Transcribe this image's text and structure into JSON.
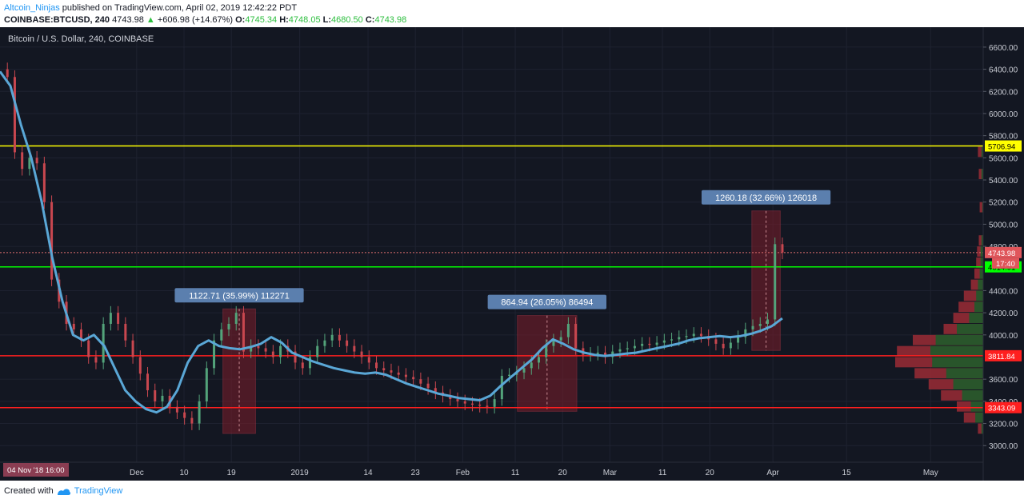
{
  "header": {
    "author": "Altcoin_Ninjas",
    "published_text": "published on TradingView.com, April 02, 2019 12:42:22 PDT",
    "symbol": "COINBASE:BTCUSD, 240",
    "last": "4743.98",
    "change": "+606.98 (+14.67%)",
    "o_label": "O:",
    "o_value": "4745.34",
    "h_label": "H:",
    "h_value": "4748.05",
    "l_label": "L:",
    "l_value": "4680.50",
    "c_label": "C:",
    "c_value": "4743.98"
  },
  "footer": {
    "created_with": "Created with",
    "brand": "TradingView"
  },
  "colors": {
    "background": "#131722",
    "moving_average": "#5aa7d6",
    "support": "#ff1f1f",
    "resistance": "#ffff00",
    "pivot": "#00ff00",
    "box": "#7d1d2a"
  },
  "chart_data": {
    "type": "line",
    "title": "Bitcoin / U.S. Dollar, 240, COINBASE",
    "ylim": [
      2850,
      6780
    ],
    "grid": true,
    "y_ticks": [
      {
        "value": 3000,
        "label": "3000.00"
      },
      {
        "value": 3200,
        "label": "3200.00"
      },
      {
        "value": 3400,
        "label": "3400.00"
      },
      {
        "value": 3600,
        "label": "3600.00"
      },
      {
        "value": 4000,
        "label": "4000.00"
      },
      {
        "value": 4200,
        "label": "4200.00"
      },
      {
        "value": 4400,
        "label": "4400.00"
      },
      {
        "value": 4800,
        "label": "4800.00"
      },
      {
        "value": 5000,
        "label": "5000.00"
      },
      {
        "value": 5200,
        "label": "5200.00"
      },
      {
        "value": 5400,
        "label": "5400.00"
      },
      {
        "value": 5600,
        "label": "5600.00"
      },
      {
        "value": 5800,
        "label": "5800.00"
      },
      {
        "value": 6000,
        "label": "6000.00"
      },
      {
        "value": 6200,
        "label": "6200.00"
      },
      {
        "value": 6400,
        "label": "6400.00"
      },
      {
        "value": 6600,
        "label": "6600.00"
      }
    ],
    "x_ticks": [
      {
        "day": 27,
        "label": "Dec"
      },
      {
        "day": 36,
        "label": "10"
      },
      {
        "day": 45,
        "label": "19"
      },
      {
        "day": 58,
        "label": "2019"
      },
      {
        "day": 71,
        "label": "14"
      },
      {
        "day": 80,
        "label": "23"
      },
      {
        "day": 89,
        "label": "Feb"
      },
      {
        "day": 99,
        "label": "11"
      },
      {
        "day": 108,
        "label": "20"
      },
      {
        "day": 117,
        "label": "Mar"
      },
      {
        "day": 127,
        "label": "11"
      },
      {
        "day": 136,
        "label": "20"
      },
      {
        "day": 148,
        "label": "Apr"
      },
      {
        "day": 162,
        "label": "15"
      },
      {
        "day": 178,
        "label": "May"
      }
    ],
    "x_range_days": [
      1,
      188
    ],
    "start_label": "04 Nov '18   16:00",
    "price_series": [
      [
        1,
        6400
      ],
      [
        2,
        6330
      ],
      [
        3,
        5650
      ],
      [
        4,
        5500
      ],
      [
        5,
        5600
      ],
      [
        6,
        5550
      ],
      [
        7,
        5200
      ],
      [
        8,
        4500
      ],
      [
        9,
        4300
      ],
      [
        10,
        4100
      ],
      [
        11,
        4050
      ],
      [
        12,
        3950
      ],
      [
        13,
        3800
      ],
      [
        14,
        3750
      ],
      [
        15,
        4100
      ],
      [
        16,
        4200
      ],
      [
        17,
        4100
      ],
      [
        18,
        3950
      ],
      [
        19,
        3800
      ],
      [
        20,
        3650
      ],
      [
        21,
        3500
      ],
      [
        22,
        3400
      ],
      [
        23,
        3450
      ],
      [
        24,
        3350
      ],
      [
        25,
        3300
      ],
      [
        26,
        3250
      ],
      [
        27,
        3200
      ],
      [
        28,
        3400
      ],
      [
        29,
        3700
      ],
      [
        30,
        3950
      ],
      [
        31,
        4050
      ],
      [
        32,
        4100
      ],
      [
        33,
        4200
      ],
      [
        34,
        3850
      ],
      [
        35,
        3900
      ],
      [
        36,
        3880
      ],
      [
        37,
        3850
      ],
      [
        38,
        3800
      ],
      [
        39,
        3900
      ],
      [
        40,
        3850
      ],
      [
        41,
        3750
      ],
      [
        42,
        3700
      ],
      [
        43,
        3800
      ],
      [
        44,
        3900
      ],
      [
        45,
        3950
      ],
      [
        46,
        4000
      ],
      [
        47,
        3950
      ],
      [
        48,
        3900
      ],
      [
        49,
        3850
      ],
      [
        50,
        3800
      ],
      [
        51,
        3750
      ],
      [
        52,
        3700
      ],
      [
        53,
        3680
      ],
      [
        54,
        3660
      ],
      [
        55,
        3640
      ],
      [
        56,
        3620
      ],
      [
        57,
        3600
      ],
      [
        58,
        3560
      ],
      [
        59,
        3520
      ],
      [
        60,
        3480
      ],
      [
        61,
        3450
      ],
      [
        62,
        3420
      ],
      [
        63,
        3400
      ],
      [
        64,
        3380
      ],
      [
        65,
        3370
      ],
      [
        66,
        3360
      ],
      [
        67,
        3350
      ],
      [
        68,
        3420
      ],
      [
        69,
        3630
      ],
      [
        70,
        3640
      ],
      [
        71,
        3660
      ],
      [
        72,
        3700
      ],
      [
        73,
        3750
      ],
      [
        74,
        3800
      ],
      [
        75,
        3900
      ],
      [
        76,
        3950
      ],
      [
        77,
        3980
      ],
      [
        78,
        4100
      ],
      [
        79,
        3880
      ],
      [
        80,
        3820
      ],
      [
        81,
        3830
      ],
      [
        82,
        3840
      ],
      [
        83,
        3800
      ],
      [
        84,
        3850
      ],
      [
        85,
        3870
      ],
      [
        86,
        3880
      ],
      [
        87,
        3900
      ],
      [
        88,
        3920
      ],
      [
        89,
        3910
      ],
      [
        90,
        3930
      ],
      [
        91,
        3950
      ],
      [
        92,
        3960
      ],
      [
        93,
        3980
      ],
      [
        94,
        3990
      ],
      [
        95,
        4010
      ],
      [
        96,
        3990
      ],
      [
        97,
        3960
      ],
      [
        98,
        3920
      ],
      [
        99,
        3880
      ],
      [
        100,
        3930
      ],
      [
        101,
        3980
      ],
      [
        102,
        4050
      ],
      [
        103,
        4080
      ],
      [
        104,
        4100
      ],
      [
        105,
        4140
      ],
      [
        106,
        4820
      ],
      [
        107,
        4744
      ]
    ],
    "ma_series": [
      [
        1,
        6380
      ],
      [
        2,
        6250
      ],
      [
        3,
        5900
      ],
      [
        4,
        5600
      ],
      [
        5,
        5200
      ],
      [
        6,
        4700
      ],
      [
        7,
        4300
      ],
      [
        8,
        4000
      ],
      [
        9,
        3950
      ],
      [
        10,
        4000
      ],
      [
        11,
        3900
      ],
      [
        12,
        3700
      ],
      [
        13,
        3500
      ],
      [
        14,
        3400
      ],
      [
        15,
        3330
      ],
      [
        16,
        3300
      ],
      [
        17,
        3350
      ],
      [
        18,
        3500
      ],
      [
        19,
        3750
      ],
      [
        20,
        3900
      ],
      [
        21,
        3950
      ],
      [
        22,
        3900
      ],
      [
        23,
        3880
      ],
      [
        24,
        3870
      ],
      [
        25,
        3890
      ],
      [
        26,
        3920
      ],
      [
        27,
        3980
      ],
      [
        28,
        3930
      ],
      [
        29,
        3840
      ],
      [
        30,
        3800
      ],
      [
        31,
        3760
      ],
      [
        32,
        3730
      ],
      [
        33,
        3700
      ],
      [
        34,
        3680
      ],
      [
        35,
        3660
      ],
      [
        36,
        3650
      ],
      [
        37,
        3660
      ],
      [
        38,
        3640
      ],
      [
        39,
        3600
      ],
      [
        40,
        3560
      ],
      [
        41,
        3530
      ],
      [
        42,
        3500
      ],
      [
        43,
        3470
      ],
      [
        44,
        3450
      ],
      [
        45,
        3430
      ],
      [
        46,
        3420
      ],
      [
        47,
        3410
      ],
      [
        48,
        3450
      ],
      [
        49,
        3540
      ],
      [
        50,
        3620
      ],
      [
        51,
        3700
      ],
      [
        52,
        3780
      ],
      [
        53,
        3880
      ],
      [
        54,
        3960
      ],
      [
        55,
        3920
      ],
      [
        56,
        3870
      ],
      [
        57,
        3840
      ],
      [
        58,
        3820
      ],
      [
        59,
        3810
      ],
      [
        60,
        3820
      ],
      [
        61,
        3830
      ],
      [
        62,
        3840
      ],
      [
        63,
        3860
      ],
      [
        64,
        3880
      ],
      [
        65,
        3900
      ],
      [
        66,
        3920
      ],
      [
        67,
        3950
      ],
      [
        68,
        3970
      ],
      [
        69,
        3980
      ],
      [
        70,
        3990
      ],
      [
        71,
        3980
      ],
      [
        72,
        3990
      ],
      [
        73,
        4010
      ],
      [
        74,
        4040
      ],
      [
        75,
        4080
      ],
      [
        76,
        4150
      ]
    ],
    "horizontal_lines": [
      {
        "name": "resistance-line",
        "value": 5706.94,
        "label": "5706.94",
        "color": "#ffff00"
      },
      {
        "name": "pivot-line",
        "value": 4614.91,
        "label": "4614.91",
        "color": "#00ff00"
      },
      {
        "name": "support-line-upper",
        "value": 3811.84,
        "label": "3811.84",
        "color": "#ff1f1f"
      },
      {
        "name": "support-line-lower",
        "value": 3343.09,
        "label": "3343.09",
        "color": "#ff1f1f"
      }
    ],
    "current_price": {
      "value": 4743.98,
      "label": "4743.98",
      "countdown": "17:40"
    },
    "measure_boxes": [
      {
        "x0": 43.4,
        "x1": 49.6,
        "y0": 3110,
        "y1": 4235,
        "label": "1122.71 (35.99%) 112271"
      },
      {
        "x0": 99.4,
        "x1": 110.7,
        "y0": 3310,
        "y1": 4175,
        "label": "864.94 (26.05%) 86494"
      },
      {
        "x0": 144.0,
        "x1": 149.4,
        "y0": 3860,
        "y1": 5120,
        "label": "1260.18 (32.66%) 126018"
      }
    ],
    "volume_profile": [
      {
        "price": 3150,
        "red": 0.06,
        "green": 0.02
      },
      {
        "price": 3250,
        "red": 0.22,
        "green": 0.09
      },
      {
        "price": 3350,
        "red": 0.3,
        "green": 0.14
      },
      {
        "price": 3450,
        "red": 0.48,
        "green": 0.24
      },
      {
        "price": 3550,
        "red": 0.62,
        "green": 0.34
      },
      {
        "price": 3650,
        "red": 0.78,
        "green": 0.42
      },
      {
        "price": 3750,
        "red": 1.0,
        "green": 0.58
      },
      {
        "price": 3850,
        "red": 0.98,
        "green": 0.6
      },
      {
        "price": 3950,
        "red": 0.8,
        "green": 0.54
      },
      {
        "price": 4050,
        "red": 0.45,
        "green": 0.3
      },
      {
        "price": 4150,
        "red": 0.34,
        "green": 0.16
      },
      {
        "price": 4250,
        "red": 0.28,
        "green": 0.1
      },
      {
        "price": 4350,
        "red": 0.22,
        "green": 0.08
      },
      {
        "price": 4450,
        "red": 0.14,
        "green": 0.06
      },
      {
        "price": 4550,
        "red": 0.1,
        "green": 0.04
      },
      {
        "price": 4650,
        "red": 0.08,
        "green": 0.03
      },
      {
        "price": 4750,
        "red": 0.07,
        "green": 0.03
      },
      {
        "price": 4850,
        "red": 0.05,
        "green": 0.02
      },
      {
        "price": 5150,
        "red": 0.04,
        "green": 0.01
      },
      {
        "price": 5450,
        "red": 0.05,
        "green": 0.02
      },
      {
        "price": 5650,
        "red": 0.06,
        "green": 0.02
      }
    ]
  }
}
